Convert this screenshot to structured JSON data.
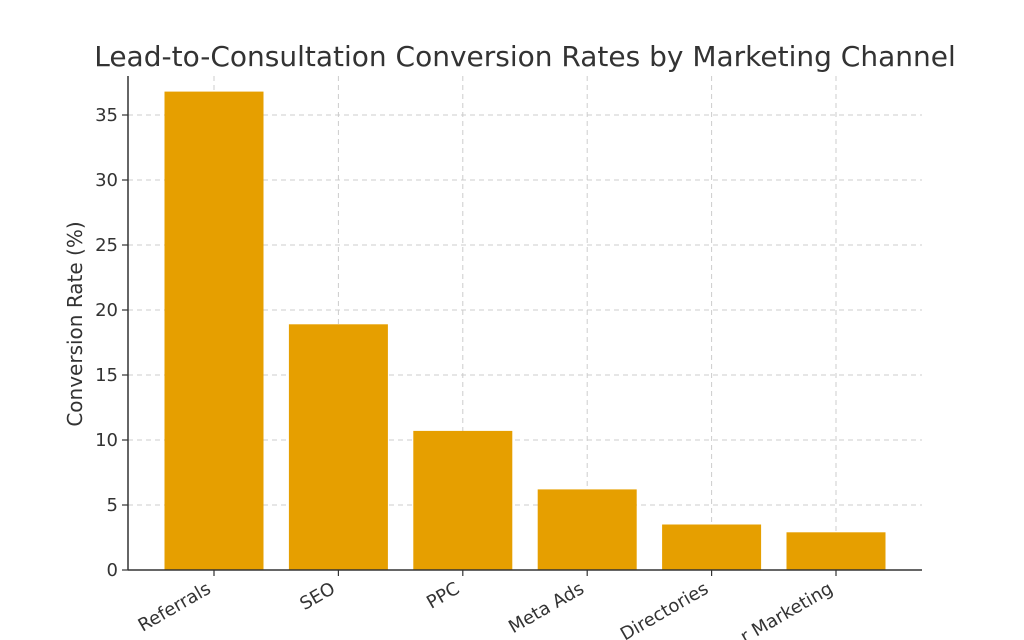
{
  "chart_data": {
    "type": "bar",
    "title": "Lead-to-Consultation Conversion Rates by Marketing Channel",
    "xlabel": "",
    "ylabel": "Conversion Rate (%)",
    "categories": [
      "Referrals",
      "SEO",
      "PPC",
      "Meta Ads",
      "Directories",
      "Email Marketing"
    ],
    "category_labels_visible": [
      "Referrals",
      "SEO",
      "PPC",
      "Meta Ads",
      "Directories",
      "r Marketing"
    ],
    "values": [
      36.8,
      18.9,
      10.7,
      6.2,
      3.5,
      2.9
    ],
    "ylim": [
      0,
      38
    ],
    "yticks": [
      0,
      5,
      10,
      15,
      20,
      25,
      30,
      35
    ],
    "grid": true,
    "bar_color": "#E69F00",
    "legend": "none"
  }
}
